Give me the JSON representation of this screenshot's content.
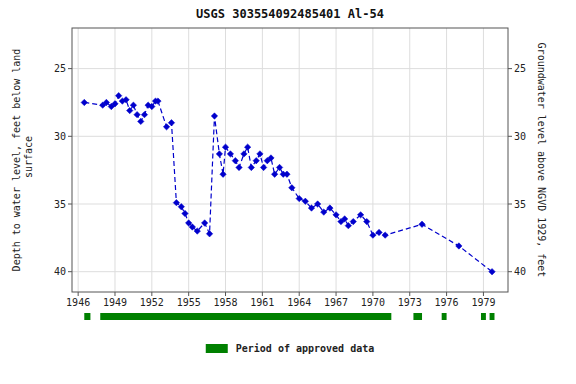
{
  "chart_data": {
    "type": "line",
    "title": "USGS 303554092485401 Al-54",
    "ylabel": "Depth to water level, feet below land\n surface",
    "y2label": "Groundwater level above NGVD 1929, feet",
    "xlim": [
      1945.5,
      1981.0
    ],
    "xticks": [
      1946,
      1949,
      1952,
      1955,
      1958,
      1961,
      1964,
      1967,
      1970,
      1973,
      1976,
      1979
    ],
    "ylim": [
      41.5,
      22.0
    ],
    "yticks": [
      25,
      30,
      35,
      40
    ],
    "y2lim": [
      41.5,
      22.0
    ],
    "y2ticks": [
      25,
      30,
      35,
      40
    ],
    "grid": true,
    "legend": "bottom",
    "x": [
      1946.5,
      1948.0,
      1948.3,
      1948.7,
      1949.0,
      1949.3,
      1949.6,
      1949.9,
      1950.2,
      1950.5,
      1950.8,
      1951.1,
      1951.4,
      1951.7,
      1952.0,
      1952.3,
      1952.5,
      1953.2,
      1953.6,
      1954.0,
      1954.4,
      1954.7,
      1955.0,
      1955.3,
      1955.7,
      1956.3,
      1956.7,
      1957.1,
      1957.5,
      1957.8,
      1958.0,
      1958.4,
      1958.8,
      1959.1,
      1959.5,
      1959.8,
      1960.1,
      1960.5,
      1960.8,
      1961.1,
      1961.4,
      1961.7,
      1962.0,
      1962.4,
      1962.7,
      1963.0,
      1963.4,
      1964.0,
      1964.5,
      1965.0,
      1965.5,
      1966.0,
      1966.5,
      1967.0,
      1967.4,
      1967.7,
      1968.0,
      1968.4,
      1969.0,
      1969.5,
      1970.0,
      1970.5,
      1971.0,
      1974.0,
      1977.0,
      1979.7
    ],
    "series": [
      {
        "color": "#0000CC",
        "marker": "diamond",
        "line_style": "dashed",
        "values": [
          27.5,
          27.7,
          27.5,
          27.8,
          27.6,
          27.0,
          27.4,
          27.3,
          28.1,
          27.7,
          28.4,
          28.9,
          28.4,
          27.7,
          27.8,
          27.4,
          27.4,
          29.3,
          29.0,
          34.9,
          35.2,
          35.7,
          36.4,
          36.7,
          37.0,
          36.4,
          37.2,
          28.5,
          31.3,
          32.8,
          30.8,
          31.3,
          31.8,
          32.3,
          31.3,
          30.8,
          32.3,
          31.8,
          31.3,
          32.3,
          31.8,
          31.6,
          32.8,
          32.3,
          32.8,
          32.8,
          33.8,
          34.6,
          34.8,
          35.3,
          35.0,
          35.6,
          35.3,
          35.8,
          36.3,
          36.1,
          36.6,
          36.3,
          35.8,
          36.3,
          37.3,
          37.1,
          37.3,
          36.5,
          38.1,
          40.0
        ]
      }
    ],
    "approved_periods": {
      "name": "Period of approved data",
      "color": "#008000",
      "values": [
        [
          1946.5,
          1947.0
        ],
        [
          1947.8,
          1971.5
        ],
        [
          1973.3,
          1974.0
        ],
        [
          1975.6,
          1976.0
        ],
        [
          1978.8,
          1979.2
        ],
        [
          1979.5,
          1979.9
        ]
      ]
    }
  }
}
